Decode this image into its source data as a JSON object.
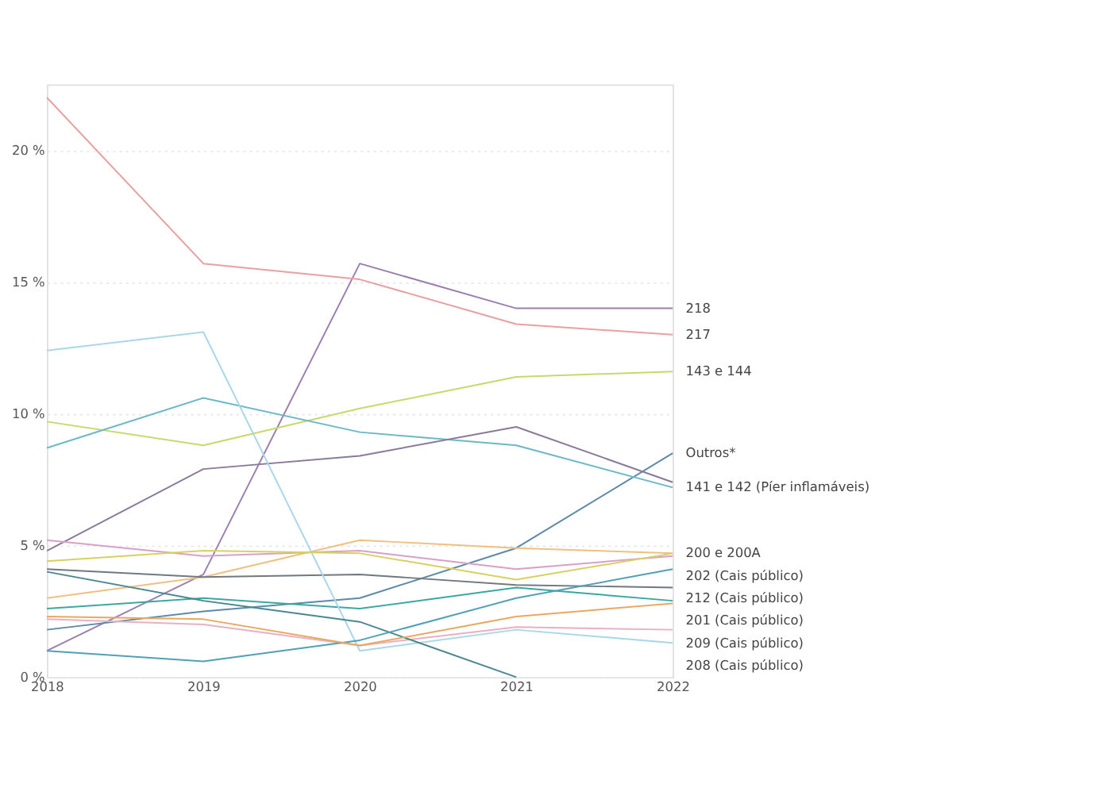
{
  "chart_data": {
    "type": "line",
    "categories": [
      "2018",
      "2019",
      "2020",
      "2021",
      "2022"
    ],
    "ylim": [
      0,
      22.5
    ],
    "yticks": [
      {
        "value": 0,
        "label": "0 %"
      },
      {
        "value": 5,
        "label": "5 %"
      },
      {
        "value": 10,
        "label": "10 %"
      },
      {
        "value": 15,
        "label": "15 %"
      },
      {
        "value": 20,
        "label": "20 %"
      }
    ],
    "grid": "y",
    "legend": false,
    "marker": "none",
    "line_style": "solid",
    "series": [
      {
        "name": "218",
        "color": "#9b7fb0",
        "values": [
          1.0,
          3.9,
          15.7,
          14.0,
          14.0
        ]
      },
      {
        "name": "217",
        "color": "#e8a0a0",
        "values": [
          22.0,
          15.7,
          15.1,
          13.4,
          13.0
        ]
      },
      {
        "name": "143 e 144",
        "color": "#c8d86a",
        "values": [
          9.7,
          8.8,
          10.2,
          11.4,
          11.6
        ]
      },
      {
        "name": "Outros*",
        "color": "#5a8aa8",
        "values": [
          1.8,
          2.5,
          3.0,
          4.9,
          8.5
        ]
      },
      {
        "name": "141 e 142 (Píer inflamáveis)",
        "color": "#6ab8c8",
        "values": [
          8.7,
          10.6,
          9.3,
          8.8,
          7.2
        ]
      },
      {
        "color": "#8a7a9a",
        "values": [
          4.8,
          7.9,
          8.4,
          9.5,
          7.4
        ]
      },
      {
        "name": "200 e 200A",
        "color": "#f0c080",
        "values": [
          3.0,
          3.8,
          5.2,
          4.9,
          4.7
        ]
      },
      {
        "name": "202 (Cais público)",
        "color": "#d8a0c8",
        "values": [
          5.2,
          4.6,
          4.8,
          4.1,
          4.6
        ]
      },
      {
        "name": "212 (Cais público)",
        "color": "#707880",
        "values": [
          4.1,
          3.8,
          3.9,
          3.5,
          3.4
        ]
      },
      {
        "name": "201 (Cais público)",
        "color": "#3aa8a0",
        "values": [
          2.6,
          3.0,
          2.6,
          3.4,
          2.9
        ]
      },
      {
        "name": "209 (Cais público)",
        "color": "#e8b0c0",
        "values": [
          2.2,
          2.0,
          1.2,
          1.9,
          1.8
        ]
      },
      {
        "name": "208 (Cais público)",
        "color": "#a8d8e8",
        "values": [
          12.4,
          13.1,
          1.0,
          1.8,
          1.3
        ]
      },
      {
        "color": "#4a8890",
        "values": [
          4.0,
          2.9,
          2.1,
          0.0,
          null
        ]
      },
      {
        "color": "#50a0b8",
        "values": [
          1.0,
          0.6,
          1.4,
          3.0,
          4.1
        ]
      },
      {
        "color": "#e8a860",
        "values": [
          2.3,
          2.2,
          1.2,
          2.3,
          2.8
        ]
      },
      {
        "color": "#d8d060",
        "values": [
          4.4,
          4.8,
          4.7,
          3.7,
          4.7
        ]
      }
    ]
  }
}
